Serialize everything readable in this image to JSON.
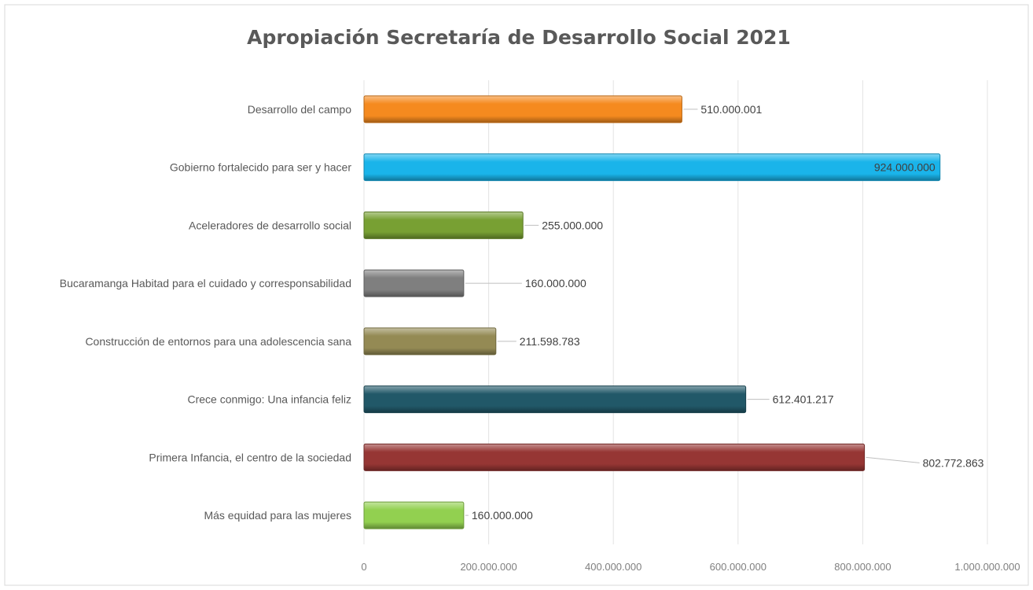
{
  "chart_data": {
    "type": "bar",
    "orientation": "horizontal",
    "title": "Apropiación Secretaría de Desarrollo Social 2021",
    "categories": [
      "Desarrollo del campo",
      "Gobierno fortalecido para ser y hacer",
      "Aceleradores de desarrollo social",
      "Bucaramanga Habitad para el cuidado y corresponsabilidad",
      "Construcción de entornos para una adolescencia sana",
      "Crece conmigo: Una infancia feliz",
      "Primera Infancia, el centro de la sociedad",
      "Más equidad para las mujeres"
    ],
    "values": [
      510000001,
      924000000,
      255000000,
      160000000,
      211598783,
      612401217,
      802772863,
      160000000
    ],
    "data_labels": [
      "510.000.001",
      "924.000.000",
      "255.000.000",
      "160.000.000",
      "211.598.783",
      "612.401.217",
      "802.772.863",
      "160.000.000"
    ],
    "colors": [
      "#f58a1f",
      "#1ab4ea",
      "#78a033",
      "#7f7f7f",
      "#948a54",
      "#215868",
      "#963634",
      "#92d050"
    ],
    "xlim": [
      0,
      1000000000
    ],
    "xticks": [
      0,
      200000000,
      400000000,
      600000000,
      800000000,
      1000000000
    ],
    "xtick_labels": [
      "0",
      "200.000.000",
      "400.000.000",
      "600.000.000",
      "800.000.000",
      "1.000.000.000"
    ],
    "xlabel": "",
    "ylabel": "",
    "grid": "vertical",
    "legend": "none"
  }
}
